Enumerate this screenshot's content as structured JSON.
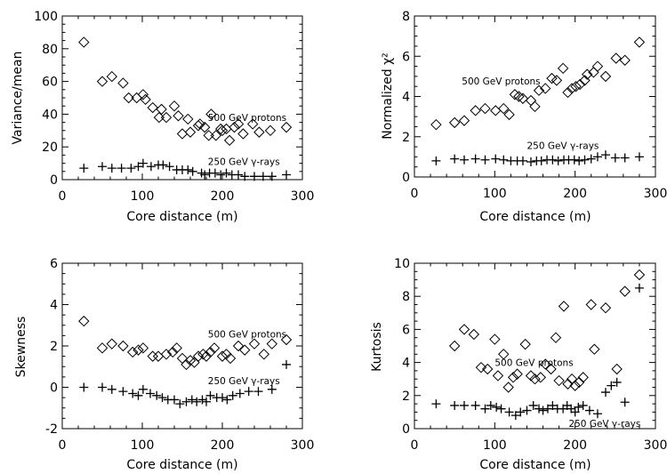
{
  "chart_data": [
    {
      "type": "scatter",
      "xlabel": "Core distance (m)",
      "ylabel": "Variance/mean",
      "xlim": [
        0,
        300
      ],
      "ylim": [
        0,
        100
      ],
      "xticks": [
        0,
        100,
        200,
        300
      ],
      "yticks": [
        0,
        20,
        40,
        60,
        80,
        100
      ],
      "series": [
        {
          "name": "500 GeV protons",
          "marker": "diamond",
          "label": {
            "x": 182,
            "y": 36
          },
          "points": [
            [
              27,
              84
            ],
            [
              50,
              60
            ],
            [
              62,
              63
            ],
            [
              76,
              59
            ],
            [
              83,
              50
            ],
            [
              93,
              50
            ],
            [
              101,
              52
            ],
            [
              104,
              49
            ],
            [
              113,
              44
            ],
            [
              121,
              38
            ],
            [
              124,
              43
            ],
            [
              130,
              38
            ],
            [
              140,
              45
            ],
            [
              145,
              39
            ],
            [
              150,
              28
            ],
            [
              157,
              37
            ],
            [
              160,
              29
            ],
            [
              170,
              33
            ],
            [
              172,
              34
            ],
            [
              178,
              32
            ],
            [
              183,
              27
            ],
            [
              186,
              40
            ],
            [
              192,
              27
            ],
            [
              198,
              31
            ],
            [
              200,
              30
            ],
            [
              205,
              31
            ],
            [
              209,
              24
            ],
            [
              215,
              32
            ],
            [
              220,
              34
            ],
            [
              226,
              28
            ],
            [
              238,
              34
            ],
            [
              246,
              29
            ],
            [
              260,
              30
            ],
            [
              280,
              32
            ]
          ]
        },
        {
          "name": "250 GeV γ-rays",
          "marker": "plus",
          "label": {
            "x": 182,
            "y": 9
          },
          "points": [
            [
              27,
              7
            ],
            [
              50,
              8
            ],
            [
              62,
              7
            ],
            [
              74,
              7
            ],
            [
              86,
              7
            ],
            [
              95,
              8
            ],
            [
              101,
              10
            ],
            [
              111,
              8
            ],
            [
              120,
              9
            ],
            [
              126,
              9
            ],
            [
              134,
              8
            ],
            [
              143,
              6
            ],
            [
              150,
              6
            ],
            [
              157,
              6
            ],
            [
              163,
              5
            ],
            [
              174,
              4
            ],
            [
              178,
              3
            ],
            [
              184,
              4
            ],
            [
              191,
              4
            ],
            [
              198,
              3
            ],
            [
              205,
              4
            ],
            [
              212,
              3
            ],
            [
              220,
              3
            ],
            [
              228,
              2
            ],
            [
              240,
              2
            ],
            [
              251,
              2
            ],
            [
              262,
              2
            ],
            [
              280,
              3
            ]
          ]
        }
      ]
    },
    {
      "type": "scatter",
      "xlabel": "Core distance (m)",
      "ylabel": "Normalized χ²",
      "xlim": [
        0,
        300
      ],
      "ylim": [
        0,
        8
      ],
      "xticks": [
        0,
        100,
        200,
        300
      ],
      "yticks": [
        0,
        2,
        4,
        6,
        8
      ],
      "series": [
        {
          "name": "500 GeV protons",
          "marker": "diamond",
          "label": {
            "x": 59,
            "y": 4.6
          },
          "points": [
            [
              27,
              2.6
            ],
            [
              50,
              2.7
            ],
            [
              62,
              2.8
            ],
            [
              76,
              3.3
            ],
            [
              88,
              3.4
            ],
            [
              101,
              3.3
            ],
            [
              111,
              3.4
            ],
            [
              118,
              3.1
            ],
            [
              125,
              4.1
            ],
            [
              130,
              4.0
            ],
            [
              135,
              3.9
            ],
            [
              145,
              3.8
            ],
            [
              150,
              3.5
            ],
            [
              155,
              4.3
            ],
            [
              163,
              4.4
            ],
            [
              171,
              4.9
            ],
            [
              177,
              4.8
            ],
            [
              185,
              5.4
            ],
            [
              191,
              4.2
            ],
            [
              196,
              4.4
            ],
            [
              201,
              4.5
            ],
            [
              206,
              4.6
            ],
            [
              212,
              4.8
            ],
            [
              215,
              5.1
            ],
            [
              223,
              5.2
            ],
            [
              228,
              5.5
            ],
            [
              238,
              5.0
            ],
            [
              251,
              5.9
            ],
            [
              262,
              5.8
            ],
            [
              280,
              6.7
            ]
          ]
        },
        {
          "name": "250 GeV γ-rays",
          "marker": "plus",
          "label": {
            "x": 140,
            "y": 1.4
          },
          "points": [
            [
              27,
              0.8
            ],
            [
              50,
              0.9
            ],
            [
              62,
              0.85
            ],
            [
              76,
              0.9
            ],
            [
              88,
              0.85
            ],
            [
              101,
              0.9
            ],
            [
              111,
              0.85
            ],
            [
              120,
              0.8
            ],
            [
              128,
              0.8
            ],
            [
              135,
              0.8
            ],
            [
              145,
              0.75
            ],
            [
              152,
              0.8
            ],
            [
              158,
              0.8
            ],
            [
              165,
              0.85
            ],
            [
              172,
              0.85
            ],
            [
              179,
              0.8
            ],
            [
              186,
              0.85
            ],
            [
              192,
              0.85
            ],
            [
              199,
              0.85
            ],
            [
              205,
              0.8
            ],
            [
              212,
              0.85
            ],
            [
              220,
              0.9
            ],
            [
              228,
              1.0
            ],
            [
              238,
              1.1
            ],
            [
              250,
              0.95
            ],
            [
              262,
              0.95
            ],
            [
              280,
              1.0
            ]
          ]
        }
      ]
    },
    {
      "type": "scatter",
      "xlabel": "Core distance (m)",
      "ylabel": "Skewness",
      "xlim": [
        0,
        300
      ],
      "ylim": [
        -2,
        6
      ],
      "xticks": [
        0,
        100,
        200,
        300
      ],
      "yticks": [
        -2,
        0,
        2,
        4,
        6
      ],
      "series": [
        {
          "name": "500 GeV protons",
          "marker": "diamond",
          "label": {
            "x": 182,
            "y": 2.4
          },
          "points": [
            [
              27,
              3.2
            ],
            [
              50,
              1.9
            ],
            [
              62,
              2.1
            ],
            [
              76,
              2.0
            ],
            [
              88,
              1.7
            ],
            [
              95,
              1.8
            ],
            [
              101,
              1.9
            ],
            [
              113,
              1.5
            ],
            [
              120,
              1.5
            ],
            [
              130,
              1.6
            ],
            [
              138,
              1.7
            ],
            [
              143,
              1.9
            ],
            [
              150,
              1.4
            ],
            [
              155,
              1.1
            ],
            [
              160,
              1.3
            ],
            [
              165,
              1.2
            ],
            [
              170,
              1.5
            ],
            [
              176,
              1.6
            ],
            [
              180,
              1.5
            ],
            [
              185,
              1.7
            ],
            [
              190,
              1.9
            ],
            [
              200,
              1.5
            ],
            [
              205,
              1.6
            ],
            [
              210,
              1.4
            ],
            [
              220,
              2.0
            ],
            [
              228,
              1.8
            ],
            [
              240,
              2.1
            ],
            [
              252,
              1.6
            ],
            [
              262,
              2.1
            ],
            [
              280,
              2.3
            ]
          ]
        },
        {
          "name": "250 GeV γ-rays",
          "marker": "plus",
          "label": {
            "x": 182,
            "y": 0.15
          },
          "points": [
            [
              27,
              0.0
            ],
            [
              50,
              0.0
            ],
            [
              62,
              -0.1
            ],
            [
              76,
              -0.2
            ],
            [
              88,
              -0.3
            ],
            [
              95,
              -0.4
            ],
            [
              101,
              -0.1
            ],
            [
              110,
              -0.3
            ],
            [
              118,
              -0.4
            ],
            [
              125,
              -0.5
            ],
            [
              132,
              -0.6
            ],
            [
              140,
              -0.6
            ],
            [
              147,
              -0.8
            ],
            [
              155,
              -0.7
            ],
            [
              162,
              -0.6
            ],
            [
              168,
              -0.7
            ],
            [
              175,
              -0.6
            ],
            [
              180,
              -0.7
            ],
            [
              185,
              -0.4
            ],
            [
              193,
              -0.5
            ],
            [
              200,
              -0.5
            ],
            [
              206,
              -0.6
            ],
            [
              213,
              -0.4
            ],
            [
              222,
              -0.3
            ],
            [
              233,
              -0.2
            ],
            [
              245,
              -0.2
            ],
            [
              262,
              -0.1
            ],
            [
              280,
              1.1
            ]
          ]
        }
      ]
    },
    {
      "type": "scatter",
      "xlabel": "Core distance (m)",
      "ylabel": "Kurtosis",
      "xlim": [
        0,
        300
      ],
      "ylim": [
        0,
        10
      ],
      "xticks": [
        0,
        100,
        200,
        300
      ],
      "yticks": [
        0,
        2,
        4,
        6,
        8,
        10
      ],
      "series": [
        {
          "name": "500 GeV protons",
          "marker": "diamond",
          "label": {
            "x": 100,
            "y": 3.8
          },
          "points": [
            [
              50,
              5.0
            ],
            [
              62,
              6.0
            ],
            [
              74,
              5.7
            ],
            [
              83,
              3.7
            ],
            [
              91,
              3.6
            ],
            [
              100,
              5.4
            ],
            [
              104,
              3.2
            ],
            [
              111,
              4.5
            ],
            [
              117,
              2.5
            ],
            [
              123,
              3.1
            ],
            [
              128,
              3.3
            ],
            [
              138,
              5.1
            ],
            [
              145,
              3.2
            ],
            [
              150,
              3.0
            ],
            [
              157,
              3.1
            ],
            [
              163,
              3.9
            ],
            [
              170,
              3.6
            ],
            [
              176,
              5.5
            ],
            [
              180,
              2.9
            ],
            [
              186,
              7.4
            ],
            [
              191,
              2.7
            ],
            [
              196,
              3.0
            ],
            [
              200,
              2.6
            ],
            [
              205,
              2.8
            ],
            [
              210,
              3.1
            ],
            [
              220,
              7.5
            ],
            [
              224,
              4.8
            ],
            [
              238,
              7.3
            ],
            [
              252,
              3.6
            ],
            [
              262,
              8.3
            ],
            [
              280,
              9.3
            ]
          ]
        },
        {
          "name": "250 GeV γ-rays",
          "marker": "plus",
          "label": {
            "x": 192,
            "y": 0.1
          },
          "points": [
            [
              27,
              1.5
            ],
            [
              50,
              1.4
            ],
            [
              62,
              1.4
            ],
            [
              76,
              1.4
            ],
            [
              88,
              1.2
            ],
            [
              95,
              1.4
            ],
            [
              102,
              1.3
            ],
            [
              108,
              1.2
            ],
            [
              118,
              1.0
            ],
            [
              126,
              0.8
            ],
            [
              132,
              1.0
            ],
            [
              140,
              1.1
            ],
            [
              148,
              1.4
            ],
            [
              155,
              1.2
            ],
            [
              160,
              1.1
            ],
            [
              166,
              1.2
            ],
            [
              172,
              1.4
            ],
            [
              178,
              1.2
            ],
            [
              185,
              1.2
            ],
            [
              190,
              1.4
            ],
            [
              195,
              1.2
            ],
            [
              200,
              1.0
            ],
            [
              204,
              1.3
            ],
            [
              210,
              1.4
            ],
            [
              218,
              1.1
            ],
            [
              228,
              0.9
            ],
            [
              238,
              2.2
            ],
            [
              245,
              2.6
            ],
            [
              252,
              2.8
            ],
            [
              262,
              1.6
            ],
            [
              280,
              8.5
            ]
          ]
        }
      ]
    }
  ]
}
